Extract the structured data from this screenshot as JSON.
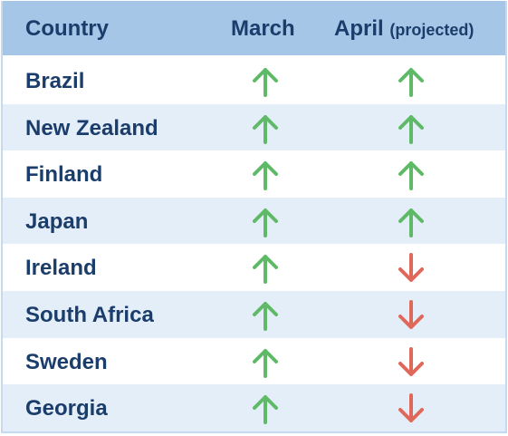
{
  "header": {
    "country": "Country",
    "march": "March",
    "april": "April",
    "april_note": "(projected)"
  },
  "rows": [
    {
      "country": "Brazil",
      "march": "up",
      "april": "up"
    },
    {
      "country": "New Zealand",
      "march": "up",
      "april": "up"
    },
    {
      "country": "Finland",
      "march": "up",
      "april": "up"
    },
    {
      "country": "Japan",
      "march": "up",
      "april": "up"
    },
    {
      "country": "Ireland",
      "march": "up",
      "april": "down"
    },
    {
      "country": "South Africa",
      "march": "up",
      "april": "down"
    },
    {
      "country": "Sweden",
      "march": "up",
      "april": "down"
    },
    {
      "country": "Georgia",
      "march": "up",
      "april": "down"
    }
  ],
  "colors": {
    "up": "#5fba67",
    "down": "#e0685a"
  }
}
